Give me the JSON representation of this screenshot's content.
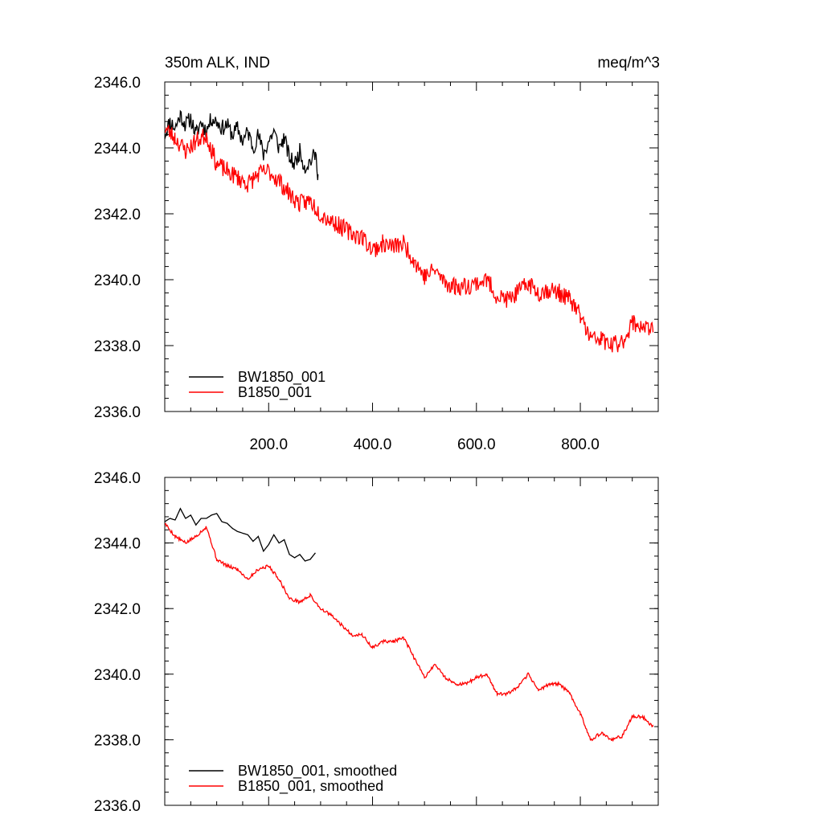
{
  "chart_data": [
    {
      "type": "line",
      "title_left": "350m ALK, IND",
      "title_right": "meq/m^3",
      "xlim": [
        0,
        950
      ],
      "ylim": [
        2336.0,
        2346.0
      ],
      "yticks": [
        "2346.0",
        "2344.0",
        "2342.0",
        "2340.0",
        "2338.0",
        "2336.0"
      ],
      "xticks": [
        "200.0",
        "400.0",
        "600.0",
        "800.0"
      ],
      "show_xtick_labels": true,
      "legend_position": "bottom-left",
      "series": [
        {
          "name": "BW1850_001",
          "color": "#000000",
          "x": [
            0,
            10,
            20,
            30,
            40,
            50,
            60,
            70,
            80,
            90,
            100,
            110,
            120,
            130,
            140,
            150,
            160,
            170,
            180,
            190,
            200,
            210,
            220,
            230,
            240,
            250,
            260,
            270,
            280,
            290,
            295
          ],
          "y": [
            2344.4,
            2344.8,
            2344.6,
            2345.0,
            2344.7,
            2344.9,
            2344.4,
            2344.8,
            2344.5,
            2344.9,
            2344.8,
            2344.6,
            2344.7,
            2344.4,
            2344.6,
            2344.2,
            2344.5,
            2344.0,
            2344.4,
            2343.8,
            2344.2,
            2344.5,
            2344.0,
            2344.3,
            2343.7,
            2343.5,
            2343.9,
            2343.4,
            2343.6,
            2343.8,
            2343.2
          ],
          "noise": 0.25,
          "seed": 11
        },
        {
          "name": "B1850_001",
          "color": "#ff0000",
          "x": [
            0,
            20,
            40,
            60,
            80,
            100,
            120,
            140,
            160,
            180,
            200,
            220,
            240,
            260,
            280,
            300,
            320,
            340,
            360,
            380,
            400,
            420,
            440,
            460,
            480,
            500,
            520,
            540,
            560,
            580,
            600,
            620,
            640,
            660,
            680,
            700,
            720,
            740,
            760,
            780,
            800,
            820,
            840,
            860,
            880,
            900,
            920,
            940
          ],
          "y": [
            2344.6,
            2344.3,
            2343.9,
            2344.2,
            2344.4,
            2343.5,
            2343.3,
            2343.1,
            2342.9,
            2343.2,
            2343.3,
            2343.0,
            2342.6,
            2342.3,
            2342.4,
            2342.0,
            2341.8,
            2341.6,
            2341.4,
            2341.3,
            2340.9,
            2341.1,
            2341.0,
            2341.1,
            2340.6,
            2340.1,
            2340.3,
            2339.9,
            2339.8,
            2339.8,
            2339.9,
            2340.0,
            2339.5,
            2339.4,
            2339.6,
            2339.9,
            2339.6,
            2339.7,
            2339.6,
            2339.4,
            2338.9,
            2338.2,
            2338.2,
            2338.0,
            2338.1,
            2338.7,
            2338.6,
            2338.4
          ],
          "noise": 0.28,
          "seed": 23
        }
      ]
    },
    {
      "type": "line",
      "title_left": "",
      "title_right": "",
      "xlim": [
        0,
        950
      ],
      "ylim": [
        2336.0,
        2346.0
      ],
      "yticks": [
        "2346.0",
        "2344.0",
        "2342.0",
        "2340.0",
        "2338.0",
        "2336.0"
      ],
      "xticks": [
        "200.0",
        "400.0",
        "600.0",
        "800.0"
      ],
      "show_xtick_labels": false,
      "legend_position": "bottom-left",
      "series": [
        {
          "name": "BW1850_001, smoothed",
          "color": "#000000",
          "x": [
            0,
            10,
            20,
            30,
            40,
            50,
            60,
            70,
            80,
            90,
            100,
            110,
            120,
            130,
            140,
            150,
            160,
            170,
            180,
            190,
            200,
            210,
            220,
            230,
            240,
            250,
            260,
            270,
            280,
            290
          ],
          "y": [
            2344.65,
            2344.75,
            2344.7,
            2345.05,
            2344.75,
            2344.85,
            2344.55,
            2344.75,
            2344.75,
            2344.85,
            2344.9,
            2344.65,
            2344.6,
            2344.45,
            2344.35,
            2344.3,
            2344.25,
            2344.05,
            2344.2,
            2343.75,
            2343.95,
            2344.25,
            2344.0,
            2344.1,
            2343.65,
            2343.55,
            2343.65,
            2343.45,
            2343.5,
            2343.7
          ],
          "noise": 0.0,
          "seed": 1
        },
        {
          "name": "B1850_001, smoothed",
          "color": "#ff0000",
          "x": [
            0,
            20,
            40,
            60,
            80,
            100,
            120,
            140,
            160,
            180,
            200,
            220,
            240,
            260,
            280,
            300,
            320,
            340,
            360,
            380,
            400,
            420,
            440,
            460,
            480,
            500,
            520,
            540,
            560,
            580,
            600,
            620,
            640,
            660,
            680,
            700,
            720,
            740,
            760,
            780,
            800,
            820,
            840,
            860,
            880,
            900,
            920,
            940
          ],
          "y": [
            2344.6,
            2344.2,
            2344.0,
            2344.2,
            2344.5,
            2343.5,
            2343.3,
            2343.2,
            2342.9,
            2343.2,
            2343.3,
            2342.9,
            2342.3,
            2342.2,
            2342.4,
            2342.0,
            2341.8,
            2341.5,
            2341.2,
            2341.2,
            2340.8,
            2341.0,
            2341.0,
            2341.1,
            2340.5,
            2339.9,
            2340.3,
            2339.9,
            2339.7,
            2339.7,
            2339.9,
            2340.0,
            2339.4,
            2339.4,
            2339.6,
            2340.0,
            2339.5,
            2339.7,
            2339.7,
            2339.4,
            2338.8,
            2338.0,
            2338.2,
            2338.0,
            2338.1,
            2338.7,
            2338.7,
            2338.4
          ],
          "noise": 0.05,
          "seed": 5
        }
      ]
    }
  ]
}
